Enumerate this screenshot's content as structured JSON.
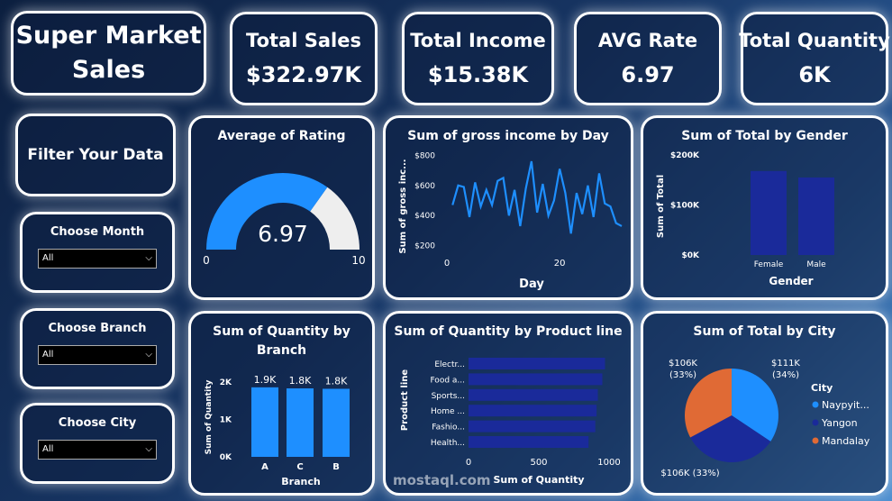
{
  "header": {
    "title_line1": "Super Market",
    "title_line2": "Sales"
  },
  "kpis": {
    "total_sales": {
      "label": "Total Sales",
      "value": "$322.97K"
    },
    "total_income": {
      "label": "Total Income",
      "value": "$15.38K"
    },
    "avg_rate": {
      "label": "AVG Rate",
      "value": "6.97"
    },
    "total_quantity": {
      "label": "Total Quantity",
      "value": "6K"
    }
  },
  "filters": {
    "title": "Filter Your Data",
    "month": {
      "label": "Choose Month",
      "value": "All"
    },
    "branch": {
      "label": "Choose Branch",
      "value": "All"
    },
    "city": {
      "label": "Choose City",
      "value": "All"
    }
  },
  "colors": {
    "accent": "#1e8fff",
    "dark_blue": "#1a2a9a",
    "orange": "#e06a35",
    "gauge_rest": "#eeeeee"
  },
  "watermark": "mostaql.com",
  "chart_data": [
    {
      "id": "gauge",
      "type": "gauge",
      "title": "Average of Rating",
      "value": 6.97,
      "min": 0,
      "max": 10,
      "value_label": "6.97",
      "min_label": "0",
      "max_label": "10"
    },
    {
      "id": "line",
      "type": "line",
      "title": "Sum of gross income by Day",
      "xlabel": "Day",
      "ylabel": "Sum of gross inc...",
      "ylim": [
        150,
        820
      ],
      "xlim": [
        0,
        31
      ],
      "yticks": [
        200,
        400,
        600,
        800
      ],
      "ytick_labels": [
        "$200",
        "$400",
        "$600",
        "$800"
      ],
      "xticks": [
        0,
        20
      ],
      "xtick_labels": [
        "0",
        "20"
      ],
      "x": [
        1,
        2,
        3,
        4,
        5,
        6,
        7,
        8,
        9,
        10,
        11,
        12,
        13,
        14,
        15,
        16,
        17,
        18,
        19,
        20,
        21,
        22,
        23,
        24,
        25,
        26,
        27,
        28,
        29,
        30,
        31
      ],
      "values": [
        470,
        600,
        590,
        390,
        620,
        460,
        570,
        470,
        630,
        650,
        400,
        570,
        330,
        580,
        760,
        420,
        610,
        400,
        500,
        710,
        550,
        280,
        550,
        410,
        600,
        390,
        680,
        480,
        460,
        350,
        330
      ]
    },
    {
      "id": "gender",
      "type": "bar",
      "title": "Sum of Total by Gender",
      "xlabel": "Gender",
      "ylabel": "Sum of Total",
      "categories": [
        "Female",
        "Male"
      ],
      "values": [
        168000,
        155000
      ],
      "ylim": [
        0,
        200000
      ],
      "yticks": [
        0,
        100000,
        200000
      ],
      "ytick_labels": [
        "$0K",
        "$100K",
        "$200K"
      ]
    },
    {
      "id": "branch",
      "type": "bar",
      "title": "Sum of Quantity by Branch",
      "xlabel": "Branch",
      "ylabel": "Sum of Quantity",
      "categories": [
        "A",
        "C",
        "B"
      ],
      "values": [
        1859,
        1831,
        1820
      ],
      "data_labels": [
        "1.9K",
        "1.8K",
        "1.8K"
      ],
      "ylim": [
        0,
        2000
      ],
      "yticks": [
        0,
        1000,
        2000
      ],
      "ytick_labels": [
        "0K",
        "1K",
        "2K"
      ]
    },
    {
      "id": "product",
      "type": "bar-horizontal",
      "title": "Sum of Quantity by Product line",
      "xlabel": "Sum of Quantity",
      "ylabel": "Product line",
      "categories": [
        "Electr...",
        "Food a...",
        "Sports...",
        "Home ...",
        "Fashio...",
        "Health..."
      ],
      "values": [
        971,
        952,
        920,
        911,
        902,
        854
      ],
      "xlim": [
        0,
        1000
      ],
      "xticks": [
        0,
        500,
        1000
      ],
      "xtick_labels": [
        "0",
        "500",
        "1000"
      ]
    },
    {
      "id": "city",
      "type": "pie",
      "title": "Sum of Total by City",
      "legend_title": "City",
      "categories": [
        "Naypyit...",
        "Yangon",
        "Mandalay"
      ],
      "values": [
        111000,
        106000,
        106000
      ],
      "data_labels": [
        "$111K (34%)",
        "$106K (33%)",
        "$106K (33%)"
      ],
      "data_label_lines": [
        [
          "$111K",
          "(34%)"
        ],
        [
          "$106K (33%)"
        ],
        [
          "$106K",
          "(33%)"
        ]
      ],
      "colors": [
        "#1e8fff",
        "#1a2a9a",
        "#e06a35"
      ]
    }
  ]
}
